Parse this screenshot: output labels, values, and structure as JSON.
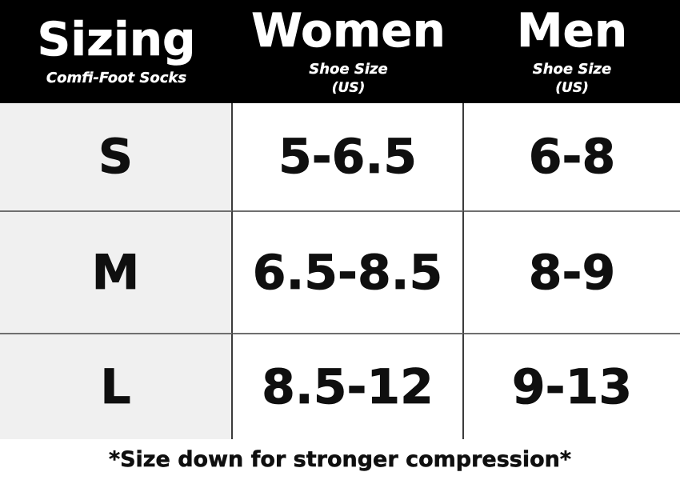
{
  "colors": {
    "header_bg": "#000000",
    "header_text": "#ffffff",
    "size_col_bg": "#f0f0f0",
    "cell_bg": "#ffffff",
    "row_divider": "#6f6f6f",
    "col_divider": "#3c3c3c",
    "body_text": "#0f0f0f"
  },
  "header": {
    "sizing": {
      "title": "Sizing",
      "subtitle": "Comfi-Foot Socks"
    },
    "women": {
      "title": "Women",
      "subtitle_line1": "Shoe Size",
      "subtitle_line2": "(US)"
    },
    "men": {
      "title": "Men",
      "subtitle_line1": "Shoe Size",
      "subtitle_line2": "(US)"
    }
  },
  "rows": [
    {
      "size": "S",
      "women": "5-6.5",
      "men": "6-8"
    },
    {
      "size": "M",
      "women": "6.5-8.5",
      "men": "8-9"
    },
    {
      "size": "L",
      "women": "8.5-12",
      "men": "9-13"
    }
  ],
  "footnote": "*Size down for stronger compression*",
  "chart_data": {
    "type": "table",
    "title": "Sizing",
    "subtitle": "Comfi-Foot Socks",
    "columns": [
      "Sizing",
      "Women Shoe Size (US)",
      "Men Shoe Size (US)"
    ],
    "rows": [
      [
        "S",
        "5-6.5",
        "6-8"
      ],
      [
        "M",
        "6.5-8.5",
        "8-9"
      ],
      [
        "L",
        "8.5-12",
        "9-13"
      ]
    ],
    "footnote": "*Size down for stronger compression*"
  }
}
